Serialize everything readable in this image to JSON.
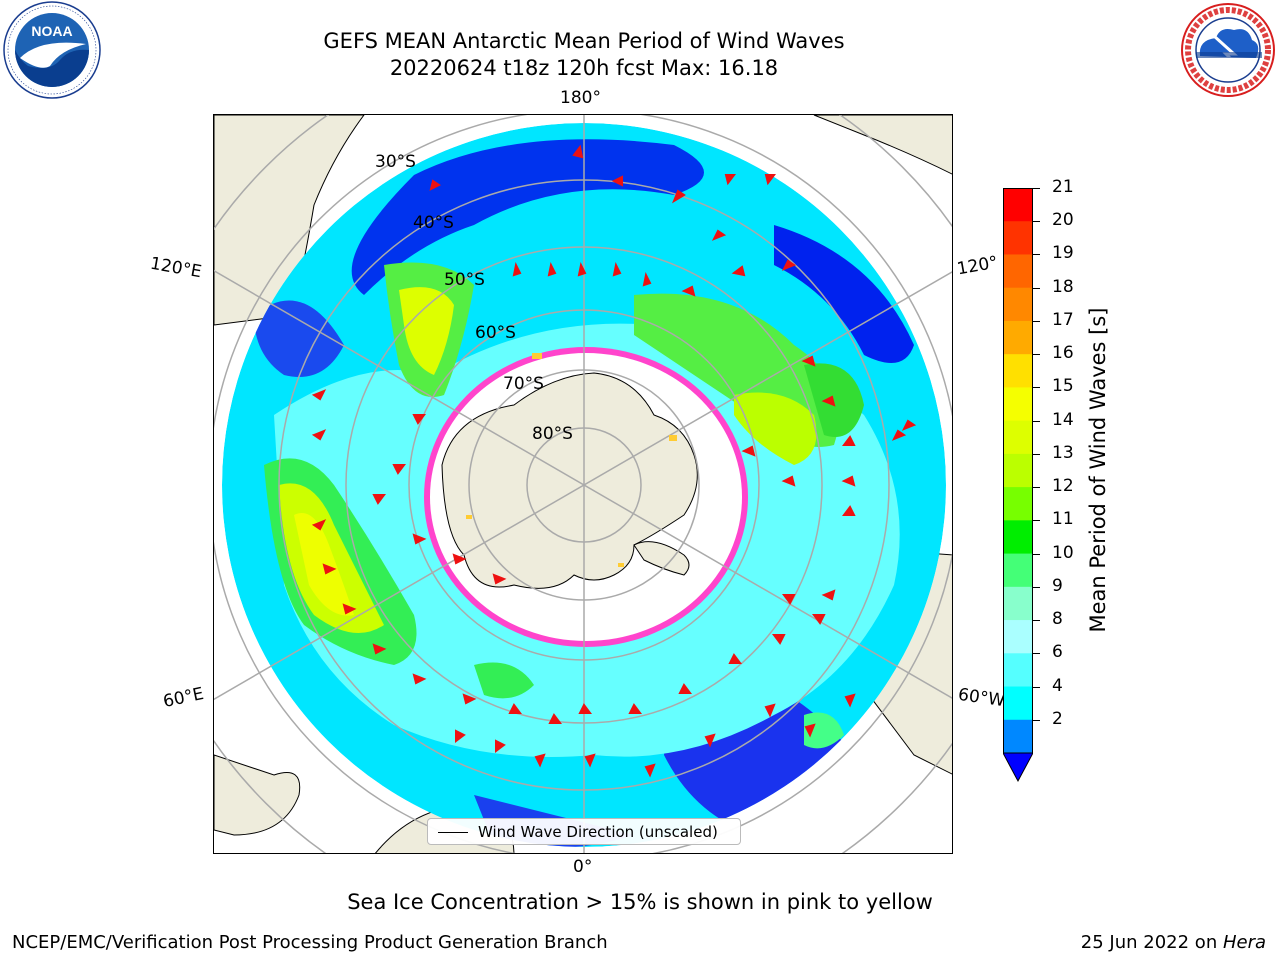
{
  "header": {
    "title_line1": "GEFS MEAN Antarctic Mean Period of Wind Waves",
    "title_line2": "20220624 t18z 120h fcst   Max: 16.18"
  },
  "logos": {
    "noaa": {
      "center_text": "NOAA",
      "ring_text": "NATIONAL OCEANIC AND ATMOSPHERIC ADMINISTRATION · U.S. DEPARTMENT OF COMMERCE"
    },
    "nws": {
      "ring_text": "NATIONAL WEATHER SERVICE"
    }
  },
  "map": {
    "projection": "south polar stereographic",
    "longitude_labels": {
      "top": "180°",
      "bottom": "0°",
      "upper_left": "120°E",
      "upper_right": "120°",
      "lower_left": "60°E",
      "lower_right": "60°W"
    },
    "latitude_labels": [
      "30°S",
      "40°S",
      "50°S",
      "60°S",
      "70°S",
      "80°S"
    ],
    "legend": "Wind Wave Direction (unscaled)",
    "land_color": "#eeecdc",
    "ice_colors": [
      "#ff33cc",
      "#ffcc33"
    ],
    "arrow_color": "#ee1111"
  },
  "colorbar": {
    "label": "Mean Period of Wind Waves [s]",
    "ticks": [
      "21",
      "20",
      "19",
      "18",
      "17",
      "16",
      "15",
      "14",
      "13",
      "12",
      "11",
      "10",
      "9",
      "8",
      "6",
      "4",
      "2"
    ],
    "colors": [
      "#ff0000",
      "#ff3300",
      "#ff6600",
      "#ff8800",
      "#ffaa00",
      "#ffe000",
      "#f5ff00",
      "#ddff00",
      "#bbff00",
      "#77ff00",
      "#00ee00",
      "#44ff77",
      "#88ffcc",
      "#aaffff",
      "#55ffff",
      "#00ffff",
      "#0088ff"
    ],
    "extend_color": "#0000ff"
  },
  "footer": {
    "ice_note": "Sea Ice Concentration > 15% is shown in pink to yellow",
    "credit": "NCEP/EMC/Verification Post Processing Product Generation Branch",
    "date_prefix": "25 Jun 2022 on ",
    "date_host": "Hera"
  }
}
